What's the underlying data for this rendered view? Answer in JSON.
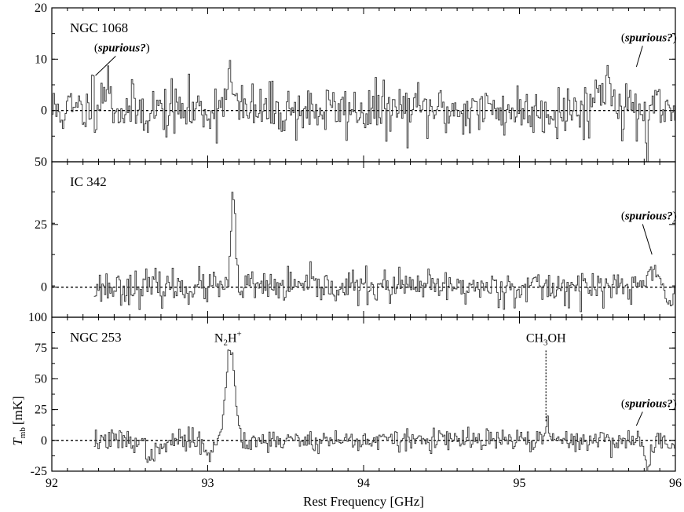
{
  "chart_data": {
    "type": "line",
    "xlabel": "Rest Frequency [GHz]",
    "ylabel": "T_mb [mK]",
    "ylabel_parts": {
      "symbol": "T",
      "sub": "mb",
      "unit": "[mK]"
    },
    "xlim": [
      92,
      96
    ],
    "xticks": [
      92,
      93,
      94,
      95,
      96
    ],
    "xtick_labels": [
      "92",
      "93",
      "94",
      "95",
      "96"
    ],
    "panels": [
      {
        "name": "NGC 1068",
        "ylim": [
          -10,
          20
        ],
        "yticks": [
          0,
          10,
          20
        ],
        "ytick_labels": [
          "0",
          "10",
          "20"
        ],
        "bottom_label": "50",
        "annotations": [
          {
            "text": "(spurious?)",
            "x": 92.45,
            "y": 11.5,
            "pointer_x": 92.28,
            "pointer_y": 6.8
          },
          {
            "text": "(spurious?)",
            "x": 95.83,
            "y": 13.5,
            "pointer_x": 95.75,
            "pointer_y": 8.5
          }
        ],
        "features": [
          {
            "x": 92.28,
            "amp": 6,
            "w": 0.02
          },
          {
            "x": 92.35,
            "amp": 5,
            "w": 0.025
          },
          {
            "x": 93.13,
            "amp": 7,
            "w": 0.025
          },
          {
            "x": 95.55,
            "amp": 5,
            "w": 0.06
          },
          {
            "x": 92.28,
            "amp": -8,
            "w": 0.006
          },
          {
            "x": 95.82,
            "amp": -9,
            "w": 0.01
          }
        ],
        "noise": 2.6,
        "x_start": 92.0,
        "seed": 11
      },
      {
        "name": "IC 342",
        "ylim": [
          -12,
          50
        ],
        "yticks": [
          0,
          25
        ],
        "ytick_labels": [
          "0",
          "25"
        ],
        "bottom_label": "100",
        "annotations": [
          {
            "text": "(spurious?)",
            "x": 95.83,
            "y": 27,
            "pointer_x": 95.85,
            "pointer_y": 13
          }
        ],
        "features": [
          {
            "x": 93.16,
            "amp": 34,
            "w": 0.014
          },
          {
            "x": 95.85,
            "amp": 8,
            "w": 0.03
          },
          {
            "x": 95.95,
            "amp": -9,
            "w": 0.012
          }
        ],
        "noise": 3.3,
        "x_start": 92.27,
        "seed": 23
      },
      {
        "name": "NGC 253",
        "ylim": [
          -25,
          100
        ],
        "yticks": [
          -25,
          0,
          25,
          50,
          75
        ],
        "ytick_labels": [
          "-25",
          "0",
          "25",
          "50",
          "75"
        ],
        "bottom_label": "",
        "line_labels": [
          {
            "text": "N",
            "sub": "2",
            "text2": "H",
            "sup": "+",
            "x": 93.13,
            "y": 80
          },
          {
            "text": "CH",
            "sub": "3",
            "text2": "OH",
            "x": 95.17,
            "y": 80
          }
        ],
        "annotations": [
          {
            "text": "(spurious?)",
            "x": 95.83,
            "y": 27,
            "pointer_x": 95.75,
            "pointer_y": 12
          }
        ],
        "dotted_marker": {
          "x": 95.17,
          "y_top": 73,
          "y_bottom": 15
        },
        "features": [
          {
            "x": 93.14,
            "amp": 74,
            "w": 0.03
          },
          {
            "x": 95.17,
            "amp": 15,
            "w": 0.01
          },
          {
            "x": 92.65,
            "amp": -12,
            "w": 0.05
          },
          {
            "x": 93.02,
            "amp": -10,
            "w": 0.03
          },
          {
            "x": 95.82,
            "amp": -20,
            "w": 0.02
          }
        ],
        "noise": 4.5,
        "x_start": 92.27,
        "seed": 37
      }
    ],
    "grid": false,
    "legend": "none"
  }
}
